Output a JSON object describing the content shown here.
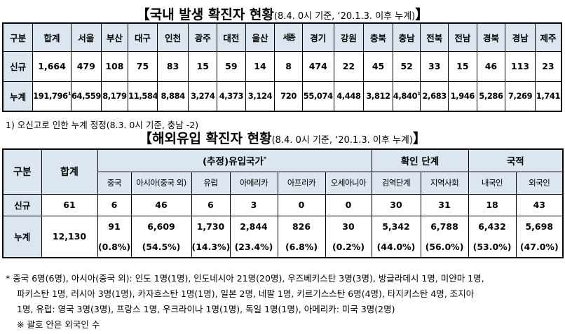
{
  "domestic": {
    "title": "【국내 발생 확진자 현황",
    "subtitle": "(8.4. 0시 기준, ‘20.1.3. 이후 누계)",
    "title_end": "】",
    "header": [
      "구분",
      "합계",
      "서울",
      "부산",
      "대구",
      "인천",
      "광주",
      "대전",
      "울산",
      "세종",
      "경기",
      "강원",
      "충북",
      "충남",
      "전북",
      "전남",
      "경북",
      "경남",
      "제주"
    ],
    "rows": [
      {
        "label": "신규",
        "values": [
          "1,664",
          "479",
          "108",
          "75",
          "83",
          "15",
          "59",
          "14",
          "8",
          "474",
          "22",
          "45",
          "52",
          "33",
          "15",
          "46",
          "113",
          "23"
        ]
      },
      {
        "label": "누계",
        "values": [
          "191,796",
          "64,559",
          "8,179",
          "11,584",
          "8,884",
          "3,274",
          "4,373",
          "3,124",
          "720",
          "55,074",
          "4,448",
          "3,812",
          "4,840",
          "2,683",
          "1,946",
          "5,286",
          "7,269",
          "1,741"
        ]
      }
    ],
    "footnote_mark": "1)",
    "footnote": "1) 오신고로 인한 누계 정정(8.3. 0시 기준, 충남 -2)"
  },
  "overseas": {
    "title": "【해외유입 확진자 현황",
    "subtitle": "(8.4. 0시 기준, ‘20.1.3. 이후 누계)",
    "title_end": "】",
    "h_gubun": "구분",
    "h_total": "합계",
    "h_countries": "(추정)유입국가",
    "h_countries_mark": "*",
    "h_stage": "확인 단계",
    "h_nationality": "국적",
    "sub_headers": [
      "중국",
      "아시아(중국 외)",
      "유럽",
      "아메리카",
      "아프리카",
      "오세아니아",
      "검역단계",
      "지역사회",
      "내국인",
      "외국인"
    ],
    "new_row": {
      "label": "신규",
      "total": "61",
      "values": [
        "6",
        "46",
        "6",
        "3",
        "0",
        "0",
        "30",
        "31",
        "18",
        "43"
      ]
    },
    "cum_row": {
      "label": "누계",
      "total": "12,130",
      "values": [
        "91",
        "6,609",
        "1,730",
        "2,844",
        "826",
        "30",
        "5,342",
        "6,788",
        "6,432",
        "5,698"
      ],
      "percents": [
        "(0.8%)",
        "(54.5%)",
        "(14.3%)",
        "(23.4%)",
        "(6.8%)",
        "(0.2%)",
        "(44.0%)",
        "(56.0%)",
        "(53.0%)",
        "(47.0%)"
      ]
    }
  },
  "notes": {
    "line1": "*  중국 6명(6명), 아시아(중국 외): 인도 1명(1명), 인도네시아 21명(20명), 우즈베키스탄 3명(3명), 방글라데시 1명, 미얀마 1명,",
    "line2": "파키스탄 1명, 러시아 3명(1명), 카자흐스탄 1명(1명), 일본 2명, 네팔 1명, 키르기스스탄 6명(4명), 타지키스탄 4명, 조지아",
    "line3": "1명, 유럽: 영국 3명(3명), 프랑스 1명, 우크라이나 1명(1명), 독일 1명(1명), 아메리카: 미국 3명(2명)",
    "line4": "※ 괄호 안은 외국인 수"
  }
}
